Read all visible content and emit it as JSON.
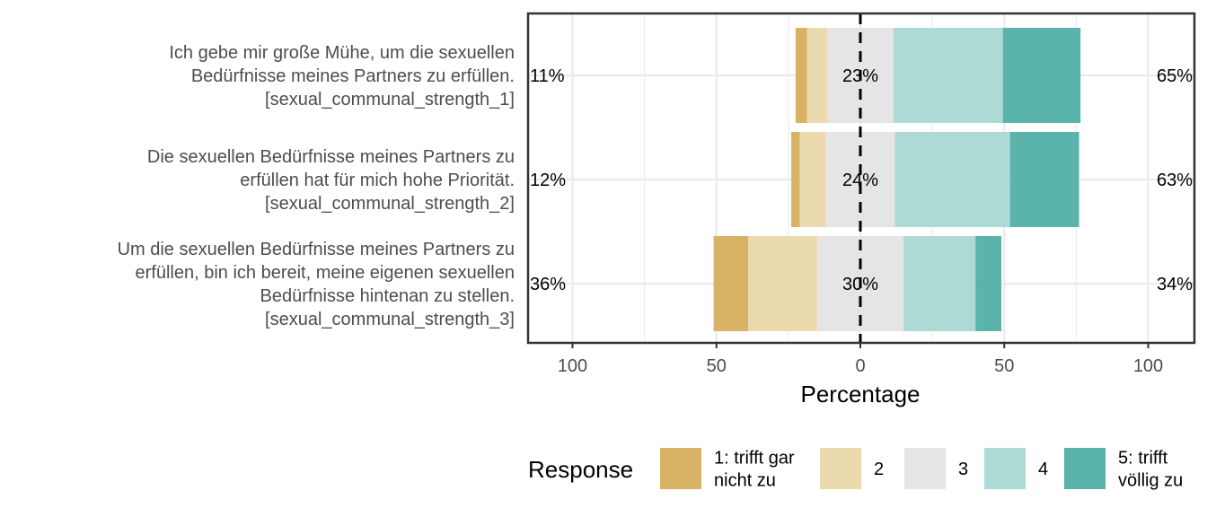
{
  "chart_data": {
    "type": "bar",
    "orientation": "horizontal-diverging",
    "xlabel": "Percentage",
    "xlim": [
      -100,
      100
    ],
    "xticks": [
      -100,
      -50,
      0,
      50,
      100
    ],
    "xtick_labels": [
      "100",
      "50",
      "0",
      "50",
      "100"
    ],
    "legend_title": "Response",
    "legend_position": "bottom",
    "categories": [
      {
        "lines": [
          "Ich gebe mir große Mühe, um die sexuellen",
          "Bedürfnisse meines Partners zu erfüllen.",
          "[sexual_communal_strength_1]"
        ],
        "values": [
          4,
          7,
          23,
          38,
          27
        ],
        "low_label": "11%",
        "mid_label": "23%",
        "high_label": "65%"
      },
      {
        "lines": [
          "Die sexuellen Bedürfnisse meines Partners zu",
          "erfüllen hat für mich hohe Priorität.",
          "[sexual_communal_strength_2]"
        ],
        "values": [
          3,
          9,
          24,
          40,
          24
        ],
        "low_label": "12%",
        "mid_label": "24%",
        "high_label": "63%"
      },
      {
        "lines": [
          "Um die sexuellen Bedürfnisse meines Partners zu",
          "erfüllen, bin ich bereit, meine eigenen sexuellen",
          "Bedürfnisse hintenan zu stellen.",
          "[sexual_communal_strength_3]"
        ],
        "values": [
          12,
          24,
          30,
          25,
          9
        ],
        "low_label": "36%",
        "mid_label": "30%",
        "high_label": "34%"
      }
    ],
    "series": [
      {
        "name": "1: trifft gar nicht zu",
        "legend_lines": [
          "1: trifft gar",
          "nicht zu"
        ],
        "color": "#D8B365"
      },
      {
        "name": "2",
        "legend_lines": [
          "2"
        ],
        "color": "#ECDAAF"
      },
      {
        "name": "3",
        "legend_lines": [
          "3"
        ],
        "color": "#E5E5E5"
      },
      {
        "name": "4",
        "legend_lines": [
          "4"
        ],
        "color": "#AEDAD5"
      },
      {
        "name": "5: trifft völlig zu",
        "legend_lines": [
          "5: trifft",
          "völlig zu"
        ],
        "color": "#5AB4AC"
      }
    ]
  }
}
